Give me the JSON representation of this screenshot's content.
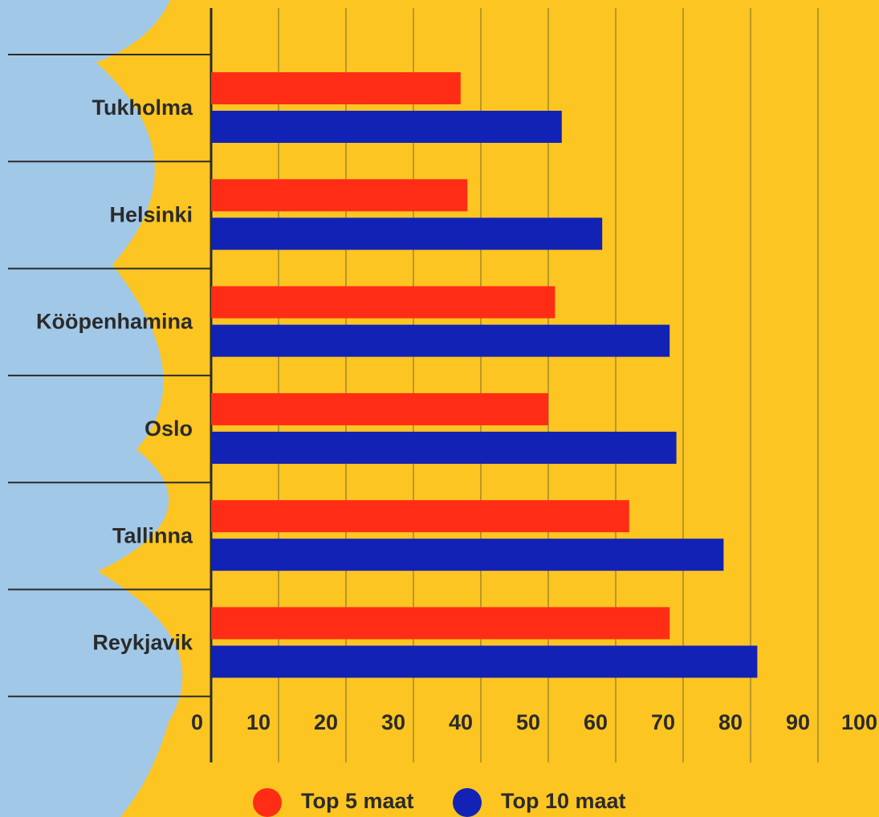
{
  "chart_data": {
    "type": "hbar",
    "categories": [
      "Tukholma",
      "Helsinki",
      "Kööpenhamina",
      "Oslo",
      "Tallinna",
      "Reykjavik"
    ],
    "series": [
      {
        "name": "Top 5 maat",
        "color": "#ff2d16",
        "values": [
          37,
          38,
          51,
          50,
          62,
          68
        ]
      },
      {
        "name": "Top 10 maat",
        "color": "#1222b5",
        "values": [
          52,
          58,
          68,
          69,
          76,
          81
        ]
      }
    ],
    "xlim": [
      0,
      100
    ],
    "xticks": [
      0,
      10,
      20,
      30,
      40,
      50,
      60,
      70,
      80,
      90,
      100
    ],
    "grid": true
  }
}
